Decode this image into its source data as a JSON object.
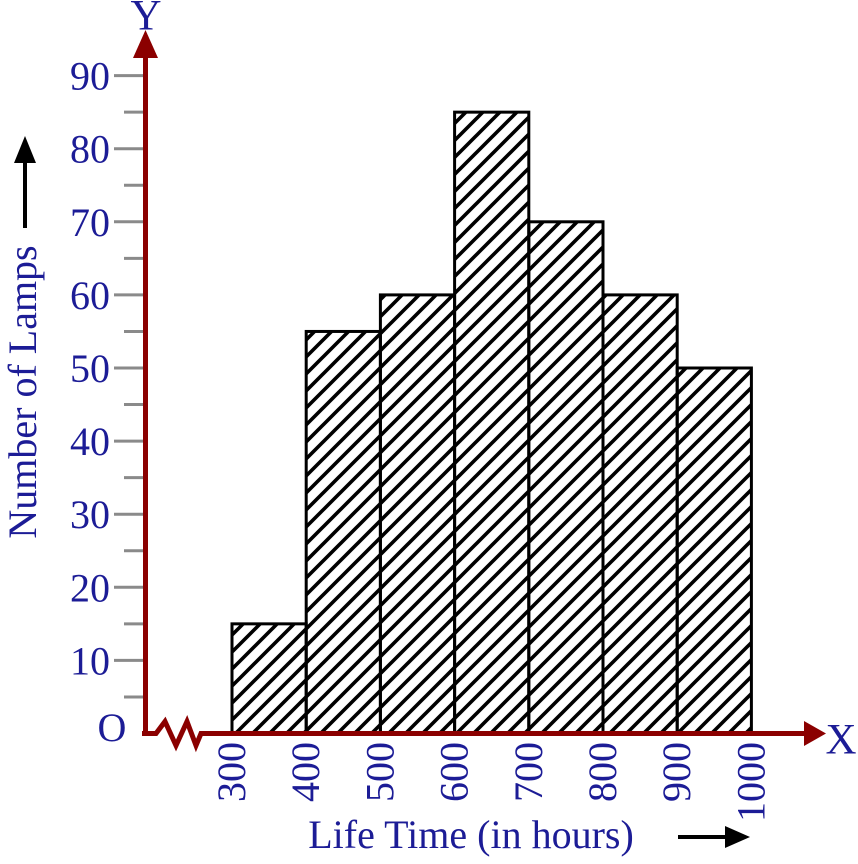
{
  "figure": {
    "y_axis_letter": "Y",
    "x_axis_letter": "X",
    "origin_label": "O",
    "y_axis_title": "Number of Lamps",
    "x_axis_title": "Life Time (in hours)"
  },
  "chart_data": {
    "type": "bar",
    "subtype": "histogram",
    "title": "",
    "xlabel": "Life Time (in hours)",
    "ylabel": "Number of Lamps",
    "bin_edges": [
      300,
      400,
      500,
      600,
      700,
      800,
      900,
      1000
    ],
    "values": [
      15,
      55,
      60,
      85,
      70,
      60,
      50
    ],
    "x_tick_labels": [
      "300",
      "400",
      "500",
      "600",
      "700",
      "800",
      "900",
      "1000"
    ],
    "y_major_tick_values": [
      10,
      20,
      30,
      40,
      50,
      60,
      70,
      80,
      90
    ],
    "y_minor_tick_step": 5,
    "y_tick_min": 5,
    "y_tick_max": 90,
    "ylim": [
      0,
      95
    ],
    "xlim": [
      300,
      1000
    ],
    "grid": false,
    "legend": null,
    "x_axis_break_near_origin": true,
    "bar_fill_style": "diagonal-hatch",
    "colors": {
      "axis": "#8B0000",
      "labels": "#1C1C96",
      "ticks": "#8A8A8A",
      "bar_border": "#000000",
      "hatch": "#000000",
      "title_arrows": "#000000",
      "background": "#FFFFFF"
    }
  }
}
